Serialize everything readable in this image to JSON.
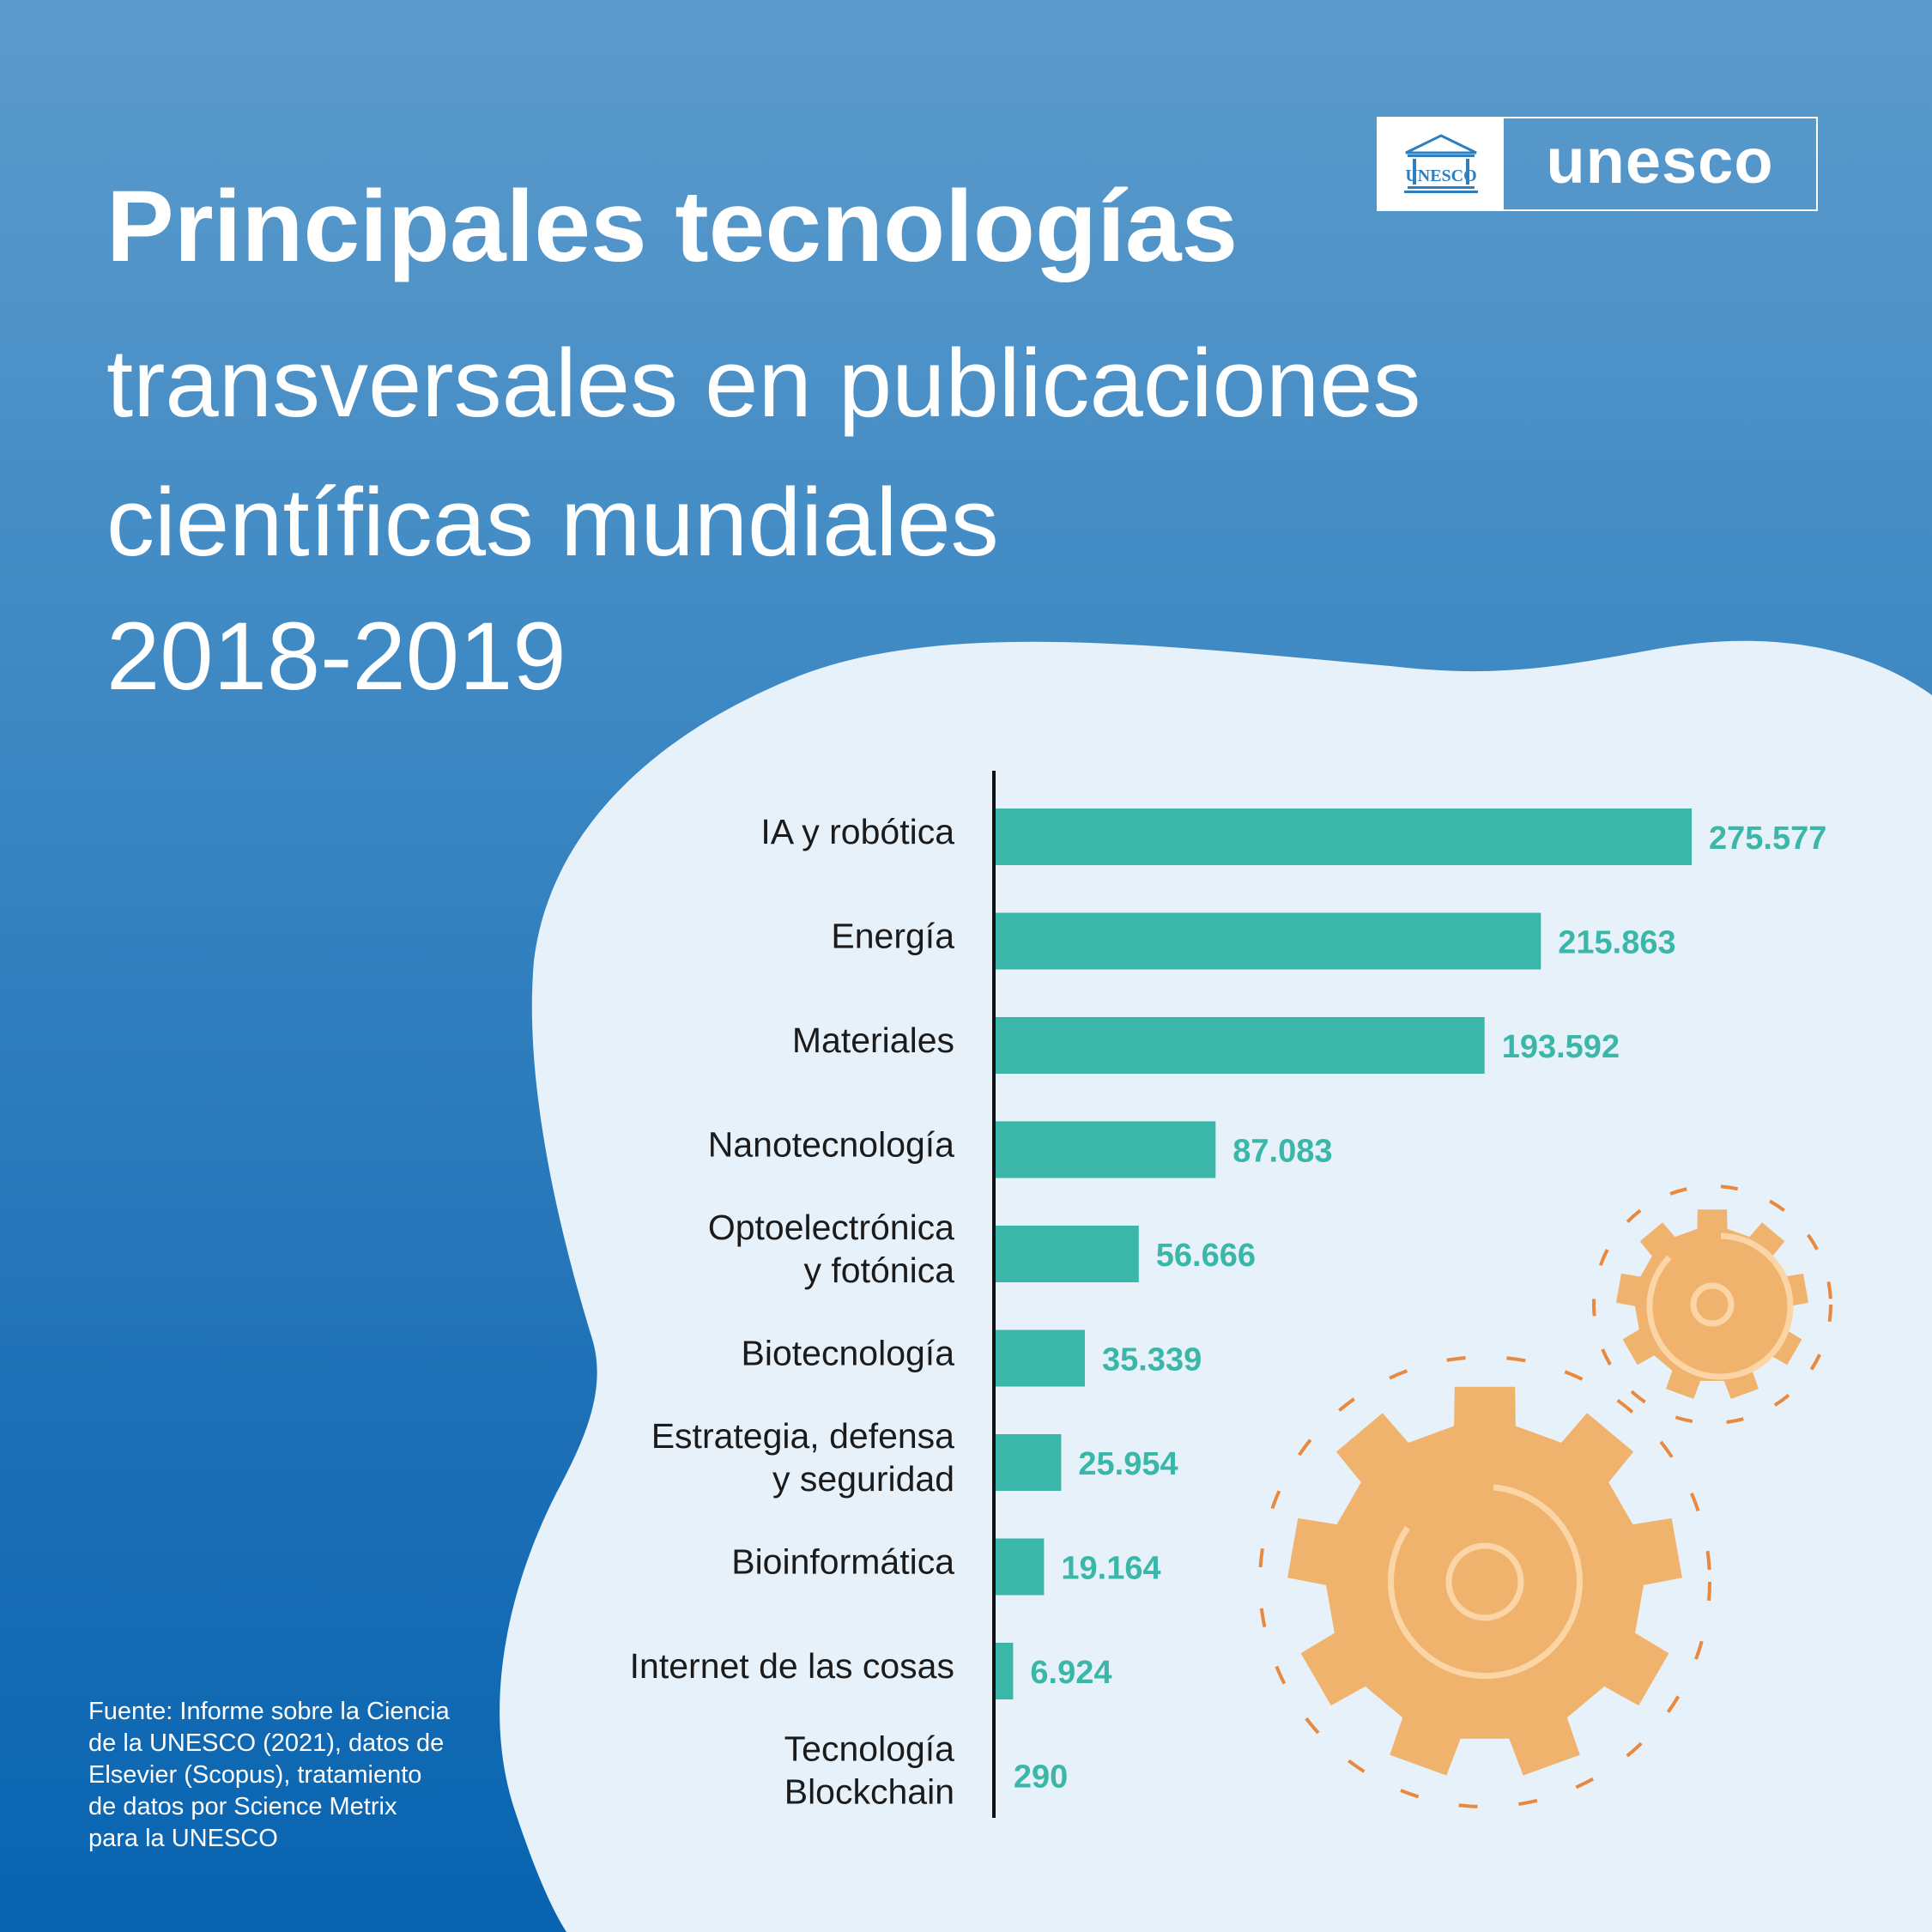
{
  "header": {
    "title_bold": "Principales tecnologías",
    "title_lines": [
      "transversales en publicaciones",
      "científicas mundiales",
      "2018-2019"
    ]
  },
  "logo": {
    "wordmark": "unesco",
    "emblem_text": "UNESCO"
  },
  "source_note": "Fuente: Informe sobre la Ciencia\nde la UNESCO (2021), datos de\nElsevier (Scopus), tratamiento\nde datos por Science Metrix\npara la UNESCO",
  "colors": {
    "background_top": "#5c9bcc",
    "background_bottom": "#0864b0",
    "panel": "#e7f1f9",
    "bar": "#3ab7a8",
    "value_text": "#3ab7a8",
    "gear": "#f0b36d",
    "gear_ring": "#e9893f"
  },
  "decorations": {
    "gear_icon_count": 2
  },
  "chart_data": {
    "type": "bar",
    "orientation": "horizontal",
    "title": "Principales tecnologías transversales en publicaciones científicas mundiales 2018-2019",
    "categories": [
      [
        "IA y robótica"
      ],
      [
        "Energía"
      ],
      [
        "Materiales"
      ],
      [
        "Nanotecnología"
      ],
      [
        "Optoelectrónica",
        "y fotónica"
      ],
      [
        "Biotecnología"
      ],
      [
        "Estrategia, defensa",
        "y seguridad"
      ],
      [
        "Bioinformática"
      ],
      [
        "Internet de las cosas"
      ],
      [
        "Tecnología",
        "Blockchain"
      ]
    ],
    "values": [
      275577,
      215863,
      193592,
      87083,
      56666,
      35339,
      25954,
      19164,
      6924,
      290
    ],
    "value_labels": [
      "275.577",
      "215.863",
      "193.592",
      "87.083",
      "56.666",
      "35.339",
      "25.954",
      "19.164",
      "6.924",
      "290"
    ],
    "xlim": [
      0,
      275577
    ],
    "grid": false,
    "legend": "none"
  }
}
